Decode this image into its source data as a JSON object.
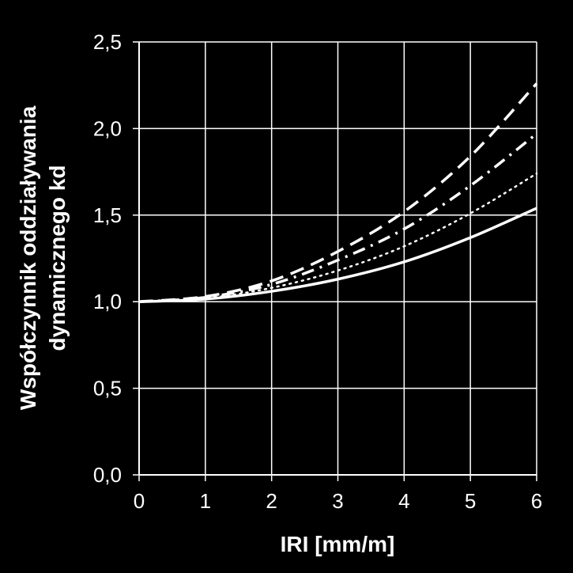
{
  "chart_data": {
    "type": "line",
    "xlabel": "IRI [mm/m]",
    "ylabel_lines": [
      "Współczynnik oddziaływania",
      "dynamicznego kd"
    ],
    "xlim": [
      0,
      6
    ],
    "ylim": [
      0,
      2.5
    ],
    "x_ticks": [
      "0",
      "1",
      "2",
      "3",
      "4",
      "5",
      "6"
    ],
    "y_ticks": [
      "0,0",
      "0,5",
      "1,0",
      "1,5",
      "2,0",
      "2,5"
    ],
    "grid": true,
    "legend": "none",
    "colors": {
      "background": "#000000",
      "plot": "#000000",
      "lines": "#ffffff",
      "grid": "#ffffff"
    },
    "series": [
      {
        "style": "solid",
        "x": [
          0,
          1,
          2,
          3,
          4,
          5,
          6
        ],
        "y": [
          1.0,
          1.015,
          1.06,
          1.13,
          1.23,
          1.37,
          1.54
        ]
      },
      {
        "style": "dotted",
        "x": [
          0,
          1,
          2,
          3,
          4,
          5,
          6
        ],
        "y": [
          1.0,
          1.02,
          1.08,
          1.18,
          1.32,
          1.51,
          1.74
        ]
      },
      {
        "style": "dash-dot",
        "x": [
          0,
          1,
          2,
          3,
          4,
          5,
          6
        ],
        "y": [
          1.0,
          1.025,
          1.1,
          1.24,
          1.42,
          1.67,
          1.97
        ]
      },
      {
        "style": "dashed",
        "x": [
          0,
          1,
          2,
          3,
          4,
          5,
          6
        ],
        "y": [
          1.0,
          1.03,
          1.12,
          1.29,
          1.52,
          1.84,
          2.26
        ]
      }
    ]
  }
}
